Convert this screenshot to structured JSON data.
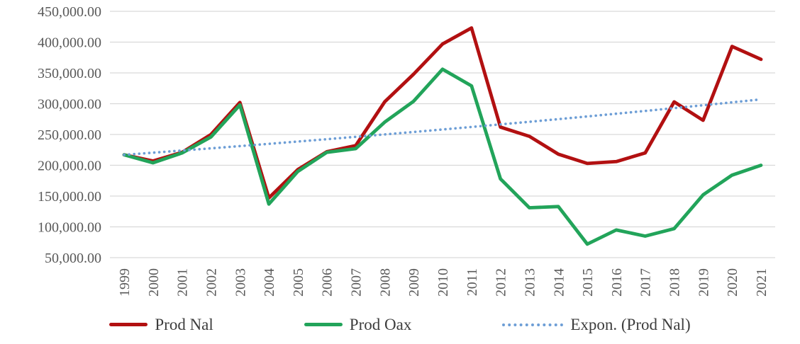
{
  "chart_data": {
    "type": "line",
    "title": "",
    "x": [
      1999,
      2000,
      2001,
      2002,
      2003,
      2004,
      2005,
      2006,
      2007,
      2008,
      2009,
      2010,
      2011,
      2012,
      2013,
      2014,
      2015,
      2016,
      2017,
      2018,
      2019,
      2020,
      2021
    ],
    "series": [
      {
        "name": "Prod Nal",
        "color": "#b21011",
        "style": "solid",
        "values": [
          217000,
          207000,
          221000,
          250000,
          302000,
          147000,
          193000,
          222000,
          232000,
          303000,
          348000,
          397000,
          423000,
          262000,
          247000,
          218000,
          203000,
          206000,
          220000,
          303000,
          273000,
          393000,
          372000
        ]
      },
      {
        "name": "Prod Oax",
        "color": "#22a45a",
        "style": "solid",
        "values": [
          217000,
          204000,
          220000,
          246000,
          298000,
          137000,
          190000,
          221000,
          227000,
          270000,
          304000,
          356000,
          329000,
          178000,
          131000,
          133000,
          72000,
          95000,
          85000,
          97000,
          152000,
          184000,
          200000
        ]
      },
      {
        "name": "Expon. (Prod Nal)",
        "color": "#6d9ed6",
        "style": "dotted",
        "trend": "exponential",
        "start_value": 217000,
        "end_value": 307000
      }
    ],
    "y_axis": {
      "min": 50000,
      "max": 450000,
      "step": 50000,
      "tick_labels": [
        "450,000.00",
        "400,000.00",
        "350,000.00",
        "300,000.00",
        "250,000.00",
        "200,000.00",
        "150,000.00",
        "100,000.00",
        "50,000.00"
      ]
    },
    "x_axis": {
      "tick_labels": [
        "1999",
        "2000",
        "2001",
        "2002",
        "2003",
        "2004",
        "2005",
        "2006",
        "2007",
        "2008",
        "2009",
        "2010",
        "2011",
        "2012",
        "2013",
        "2014",
        "2015",
        "2016",
        "2017",
        "2018",
        "2019",
        "2020",
        "2021"
      ]
    },
    "grid": true,
    "legend_position": "bottom"
  },
  "colors": {
    "gridline": "#d9d9d9",
    "axis_text": "#595959",
    "legend_text": "#3d3d3d",
    "background": "#ffffff"
  }
}
